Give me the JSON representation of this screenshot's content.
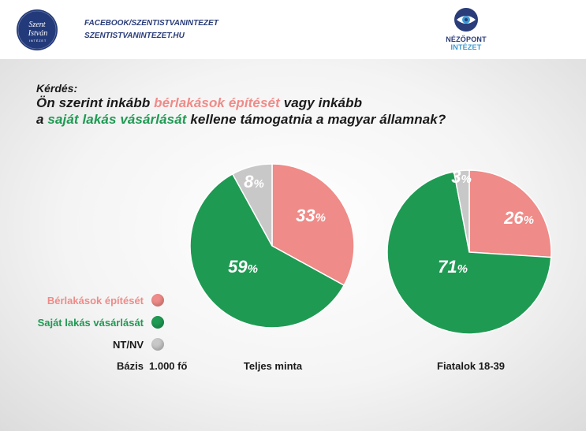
{
  "header": {
    "logo_left_text": "Szent István Intézet",
    "link1": "FACEBOOK/SZENTISTVANINTEZET",
    "link2": "SZENTISTVANINTEZET.HU",
    "logo_right_name": "NÉZŐPONT",
    "logo_right_suffix": "INTÉZET"
  },
  "question": {
    "label": "Kérdés:",
    "line1_pre": "Ön szerint inkább ",
    "line1_hl": "bérlakások építését",
    "line1_post": " vagy inkább",
    "line2_pre": "a ",
    "line2_hl": "saját lakás vásárlását",
    "line2_post": " kellene támogatnia a magyar államnak?"
  },
  "legend": [
    {
      "label": "Bérlakások építését",
      "color": "#ef8b88"
    },
    {
      "label": "Saját lakás vásárlását",
      "color": "#1f9a53"
    },
    {
      "label": "NT/NV",
      "color": "#c8c8c8"
    }
  ],
  "base": {
    "label": "Bázis",
    "value": "1.000 fő"
  },
  "colors": {
    "pink": "#ef8b88",
    "green": "#1f9a53",
    "grey": "#c8c8c8"
  },
  "chart_data": [
    {
      "type": "pie",
      "title": "Teljes minta",
      "slices": [
        {
          "label": "Bérlakások építését",
          "value": 33
        },
        {
          "label": "Saját lakás vásárlását",
          "value": 59
        },
        {
          "label": "NT/NV",
          "value": 8
        }
      ],
      "unit": "%"
    },
    {
      "type": "pie",
      "title": "Fiatalok 18-39",
      "slices": [
        {
          "label": "Bérlakások építését",
          "value": 26
        },
        {
          "label": "Saját lakás vásárlását",
          "value": 71
        },
        {
          "label": "NT/NV",
          "value": 3
        }
      ],
      "unit": "%"
    }
  ]
}
